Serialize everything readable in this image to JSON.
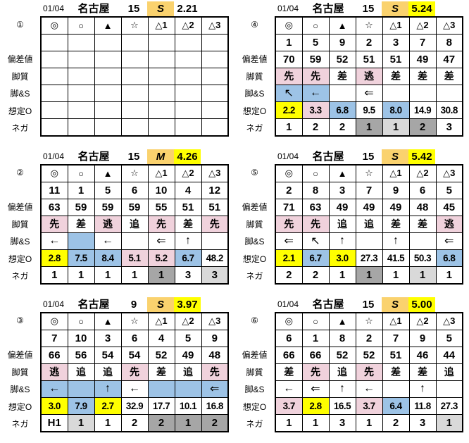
{
  "colors": {
    "yellow": "#ffff00",
    "orange": "#fad26e",
    "pink": "#f0d2dc",
    "blue": "#9dc3e6",
    "darkgray": "#a6a6a6",
    "lightgray": "#d9d9d9"
  },
  "symbols": [
    "◎",
    "○",
    "▲",
    "☆",
    "△1",
    "△2",
    "△3"
  ],
  "row_labels": {
    "hensachi": "偏差値",
    "kyakushitsu": "脚質",
    "kyaku_s": "脚&S",
    "soutei_o": "想定O",
    "nega": "ネガ"
  },
  "tables": [
    {
      "badge": "①",
      "header": {
        "date": "01/04",
        "track": "名古屋",
        "race": "15",
        "pace": "S",
        "pace_bg": "orange",
        "value": "2.21",
        "value_bg": ""
      },
      "numbers": [
        "",
        "",
        "",
        "",
        "",
        "",
        ""
      ],
      "hensachi": [
        "",
        "",
        "",
        "",
        "",
        "",
        ""
      ],
      "kyakushitsu": [
        [
          "",
          ""
        ],
        [
          "",
          ""
        ],
        [
          "",
          ""
        ],
        [
          "",
          ""
        ],
        [
          "",
          ""
        ],
        [
          "",
          ""
        ],
        [
          "",
          ""
        ]
      ],
      "kyaku_s": [
        [
          "",
          ""
        ],
        [
          "",
          ""
        ],
        [
          "",
          ""
        ],
        [
          "",
          ""
        ],
        [
          "",
          ""
        ],
        [
          "",
          ""
        ],
        [
          "",
          ""
        ]
      ],
      "soutei": [
        [
          "",
          ""
        ],
        [
          "",
          ""
        ],
        [
          "",
          ""
        ],
        [
          "",
          ""
        ],
        [
          "",
          ""
        ],
        [
          "",
          ""
        ],
        [
          "",
          ""
        ]
      ],
      "nega": [
        [
          "",
          ""
        ],
        [
          "",
          ""
        ],
        [
          "",
          ""
        ],
        [
          "",
          ""
        ],
        [
          "",
          ""
        ],
        [
          "",
          ""
        ],
        [
          "",
          ""
        ]
      ]
    },
    {
      "badge": "②",
      "header": {
        "date": "01/04",
        "track": "名古屋",
        "race": "15",
        "pace": "M",
        "pace_bg": "orange",
        "value": "4.26",
        "value_bg": "yellow"
      },
      "numbers": [
        "11",
        "1",
        "5",
        "6",
        "10",
        "4",
        "12"
      ],
      "hensachi": [
        "63",
        "59",
        "59",
        "59",
        "55",
        "51",
        "51"
      ],
      "kyakushitsu": [
        [
          "先",
          "pink"
        ],
        [
          "差",
          ""
        ],
        [
          "逃",
          "pink"
        ],
        [
          "追",
          ""
        ],
        [
          "先",
          "pink"
        ],
        [
          "差",
          ""
        ],
        [
          "先",
          "pink"
        ]
      ],
      "kyaku_s": [
        [
          "←",
          ""
        ],
        [
          "",
          "blue"
        ],
        [
          "←",
          ""
        ],
        [
          "",
          ""
        ],
        [
          "⇐",
          ""
        ],
        [
          "↑",
          ""
        ],
        [
          "",
          ""
        ]
      ],
      "soutei": [
        [
          "2.8",
          "yellow"
        ],
        [
          "7.5",
          "blue"
        ],
        [
          "8.4",
          "blue"
        ],
        [
          "5.1",
          "pink"
        ],
        [
          "5.2",
          "pink"
        ],
        [
          "6.7",
          "blue"
        ],
        [
          "48.2",
          ""
        ]
      ],
      "nega": [
        [
          "1",
          ""
        ],
        [
          "1",
          ""
        ],
        [
          "1",
          ""
        ],
        [
          "1",
          ""
        ],
        [
          "1",
          "darkgray"
        ],
        [
          "3",
          ""
        ],
        [
          "3",
          "lightgray"
        ]
      ]
    },
    {
      "badge": "③",
      "header": {
        "date": "01/04",
        "track": "名古屋",
        "race": "9",
        "pace": "S",
        "pace_bg": "orange",
        "value": "3.97",
        "value_bg": "yellow"
      },
      "numbers": [
        "7",
        "10",
        "3",
        "6",
        "4",
        "5",
        "9"
      ],
      "hensachi": [
        "66",
        "56",
        "54",
        "54",
        "52",
        "49",
        "48"
      ],
      "kyakushitsu": [
        [
          "逃",
          "pink"
        ],
        [
          "追",
          ""
        ],
        [
          "追",
          ""
        ],
        [
          "先",
          "pink"
        ],
        [
          "差",
          ""
        ],
        [
          "追",
          ""
        ],
        [
          "先",
          "pink"
        ]
      ],
      "kyaku_s": [
        [
          "←",
          "blue"
        ],
        [
          "",
          "blue"
        ],
        [
          "↑",
          "blue"
        ],
        [
          "←",
          ""
        ],
        [
          "",
          "blue"
        ],
        [
          "",
          "blue"
        ],
        [
          "⇐",
          "blue"
        ]
      ],
      "soutei": [
        [
          "3.0",
          "yellow"
        ],
        [
          "7.9",
          "blue"
        ],
        [
          "2.7",
          "yellow"
        ],
        [
          "32.9",
          ""
        ],
        [
          "17.7",
          ""
        ],
        [
          "10.1",
          ""
        ],
        [
          "16.8",
          ""
        ]
      ],
      "nega": [
        [
          "H1",
          ""
        ],
        [
          "1",
          "lightgray"
        ],
        [
          "1",
          ""
        ],
        [
          "2",
          ""
        ],
        [
          "2",
          "darkgray"
        ],
        [
          "1",
          "darkgray"
        ],
        [
          "2",
          "darkgray"
        ]
      ]
    },
    {
      "badge": "④",
      "header": {
        "date": "01/04",
        "track": "名古屋",
        "race": "15",
        "pace": "S",
        "pace_bg": "orange",
        "value": "5.24",
        "value_bg": "yellow"
      },
      "numbers": [
        "1",
        "5",
        "9",
        "2",
        "3",
        "7",
        "8"
      ],
      "hensachi": [
        "70",
        "59",
        "52",
        "51",
        "51",
        "49",
        "47"
      ],
      "kyakushitsu": [
        [
          "先",
          "pink"
        ],
        [
          "先",
          "pink"
        ],
        [
          "差",
          ""
        ],
        [
          "逃",
          "pink"
        ],
        [
          "差",
          ""
        ],
        [
          "差",
          ""
        ],
        [
          "差",
          ""
        ]
      ],
      "kyaku_s": [
        [
          "↖",
          "blue"
        ],
        [
          "←",
          "blue"
        ],
        [
          "",
          ""
        ],
        [
          "⇐",
          ""
        ],
        [
          "",
          ""
        ],
        [
          "",
          ""
        ],
        [
          "",
          ""
        ]
      ],
      "soutei": [
        [
          "2.2",
          "yellow"
        ],
        [
          "3.3",
          "pink"
        ],
        [
          "6.8",
          "blue"
        ],
        [
          "9.5",
          ""
        ],
        [
          "8.0",
          "blue"
        ],
        [
          "14.9",
          ""
        ],
        [
          "30.8",
          ""
        ]
      ],
      "nega": [
        [
          "1",
          ""
        ],
        [
          "2",
          ""
        ],
        [
          "2",
          ""
        ],
        [
          "1",
          "darkgray"
        ],
        [
          "1",
          "lightgray"
        ],
        [
          "2",
          "darkgray"
        ],
        [
          "3",
          ""
        ]
      ]
    },
    {
      "badge": "⑤",
      "header": {
        "date": "01/04",
        "track": "名古屋",
        "race": "15",
        "pace": "S",
        "pace_bg": "orange",
        "value": "5.42",
        "value_bg": "yellow"
      },
      "numbers": [
        "2",
        "8",
        "3",
        "7",
        "9",
        "6",
        "5"
      ],
      "hensachi": [
        "71",
        "63",
        "49",
        "49",
        "49",
        "48",
        "45"
      ],
      "kyakushitsu": [
        [
          "先",
          "pink"
        ],
        [
          "先",
          "pink"
        ],
        [
          "追",
          ""
        ],
        [
          "追",
          ""
        ],
        [
          "差",
          ""
        ],
        [
          "差",
          ""
        ],
        [
          "逃",
          "pink"
        ]
      ],
      "kyaku_s": [
        [
          "⇐",
          ""
        ],
        [
          "↖",
          ""
        ],
        [
          "↑",
          ""
        ],
        [
          "",
          ""
        ],
        [
          "↑",
          ""
        ],
        [
          "",
          ""
        ],
        [
          "⇐",
          ""
        ]
      ],
      "soutei": [
        [
          "2.1",
          "yellow"
        ],
        [
          "6.7",
          "blue"
        ],
        [
          "3.0",
          "yellow"
        ],
        [
          "27.3",
          ""
        ],
        [
          "41.5",
          ""
        ],
        [
          "50.3",
          ""
        ],
        [
          "6.8",
          "blue"
        ]
      ],
      "nega": [
        [
          "2",
          ""
        ],
        [
          "2",
          ""
        ],
        [
          "1",
          ""
        ],
        [
          "1",
          "darkgray"
        ],
        [
          "1",
          ""
        ],
        [
          "1",
          "lightgray"
        ],
        [
          "1",
          ""
        ]
      ]
    },
    {
      "badge": "⑥",
      "header": {
        "date": "01/04",
        "track": "名古屋",
        "race": "15",
        "pace": "S",
        "pace_bg": "orange",
        "value": "5.00",
        "value_bg": "yellow"
      },
      "numbers": [
        "6",
        "1",
        "8",
        "2",
        "7",
        "9",
        "5"
      ],
      "hensachi": [
        "66",
        "66",
        "52",
        "52",
        "51",
        "46",
        "44"
      ],
      "kyakushitsu": [
        [
          "差",
          ""
        ],
        [
          "先",
          "pink"
        ],
        [
          "追",
          ""
        ],
        [
          "先",
          "pink"
        ],
        [
          "差",
          ""
        ],
        [
          "差",
          ""
        ],
        [
          "追",
          ""
        ]
      ],
      "kyaku_s": [
        [
          "←",
          ""
        ],
        [
          "⇐",
          ""
        ],
        [
          "↑",
          ""
        ],
        [
          "←",
          ""
        ],
        [
          "",
          ""
        ],
        [
          "↑",
          ""
        ],
        [
          "",
          ""
        ]
      ],
      "soutei": [
        [
          "3.7",
          "pink"
        ],
        [
          "2.8",
          "yellow"
        ],
        [
          "16.5",
          ""
        ],
        [
          "3.7",
          "pink"
        ],
        [
          "6.4",
          "blue"
        ],
        [
          "11.8",
          ""
        ],
        [
          "27.3",
          ""
        ]
      ],
      "nega": [
        [
          "1",
          ""
        ],
        [
          "1",
          ""
        ],
        [
          "3",
          ""
        ],
        [
          "1",
          ""
        ],
        [
          "2",
          ""
        ],
        [
          "3",
          ""
        ],
        [
          "1",
          "lightgray"
        ]
      ]
    }
  ]
}
